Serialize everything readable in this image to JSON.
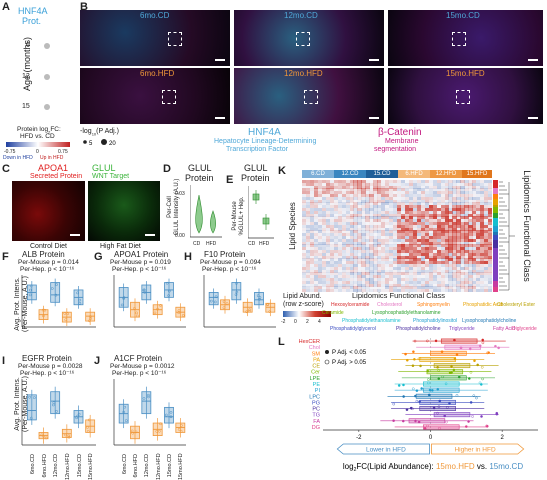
{
  "panelA": {
    "letter": "A",
    "title_l1": "HNF4A",
    "title_l2": "Prot.",
    "ylabel": "Age (months)",
    "ages": [
      "6",
      "12",
      "15"
    ],
    "legend_title_l1": "Protein log",
    "legend_title_l2": "FC:",
    "legend_title_l3": "HFD vs. CD",
    "cbar_ticks": [
      "-0.75",
      "0",
      "0.75"
    ],
    "down_label": "Down in HFD",
    "up_label": "Up in HFD",
    "size_title": "-log",
    "size_title_sub": "10",
    "size_title_end": "(P Adj.)",
    "size_values": [
      "5",
      "20"
    ]
  },
  "panelB": {
    "letter": "B",
    "cd_labels": [
      "6mo.CD",
      "12mo.CD",
      "15mo.CD"
    ],
    "hfd_labels": [
      "6mo.HFD",
      "12mo.HFD",
      "15mo.HFD"
    ],
    "hnf4a_title": "HNF4A",
    "hnf4a_desc_l1": "Hepatocyte Lineage-Determining",
    "hnf4a_desc_l2": "Transcription Factor",
    "bcat_title": "β-Catenin",
    "bcat_desc_l1": "Membrane",
    "bcat_desc_l2": "segmentation"
  },
  "panelC": {
    "letter": "C",
    "apoa1": "APOA1",
    "apoa1_sub": "Secreted Protein",
    "glul": "GLUL",
    "glul_sub": "WNT Target",
    "control": "Control Diet",
    "hfd": "High Fat Diet"
  },
  "panelD": {
    "letter": "D",
    "title_l1": "GLUL",
    "title_l2": "Protein",
    "ylabel_l1": "Per-Cell",
    "ylabel_l2": "GLUL Intensity (A.U.)",
    "yticks": [
      "0.00",
      "0.03"
    ],
    "xticks": [
      "CD",
      "HFD"
    ]
  },
  "panelE": {
    "letter": "E",
    "title_l1": "GLUL",
    "title_l2": "Protein",
    "ylabel_l1": "Per-Mouse",
    "ylabel_l2": "%GLUL+ Hep."
  },
  "panelF": {
    "letter": "F",
    "title": "ALB Protein",
    "pm": "Per-Mouse p = 0.014",
    "ph": "Per-Hep. p < 10⁻¹⁶"
  },
  "panelG": {
    "letter": "G",
    "title": "APOA1 Protein",
    "pm": "Per-Mouse p = 0.019",
    "ph": "Per-Hep. p < 10⁻¹⁶"
  },
  "panelH": {
    "letter": "H",
    "title": "F10 Protein",
    "pm": "Per-Mouse p = 0.094",
    "ph": "Per-Hep. p < 10⁻¹⁶"
  },
  "panelI": {
    "letter": "I",
    "title": "EGFR Protein",
    "pm": "Per-Mouse p = 0.0028",
    "ph": "Per-Hep. p < 10⁻¹⁶"
  },
  "panelJ": {
    "letter": "J",
    "title": "A1CF Protein",
    "pm": "Per-Mouse p = 0.0012",
    "ph": "Per-Hep. p < 10⁻¹⁶"
  },
  "protein_ylabel_l1": "Avg. Prot. Intens.",
  "protein_ylabel_l2": "(Per-Mouse, A.U.)",
  "group_labels": [
    "6mo.CD",
    "6mo.HFD",
    "12mo.CD",
    "12mo.HFD",
    "15mo.CD",
    "15mo.HFD"
  ],
  "panelK": {
    "letter": "K",
    "headers": [
      "6.CD",
      "12.CD",
      "15.CD",
      "6.HFD",
      "12.HFD",
      "15.HFD"
    ],
    "ylabel": "Lipid Species",
    "right_label": "Lipidomics Functional Class",
    "cbar_title_l1": "Lipid Abund.",
    "cbar_title_l2": "(row z-score)",
    "cbar_ticks": [
      "-2",
      "0",
      "2",
      "4"
    ],
    "class_title": "Lipidomics Functional Class",
    "classes": [
      {
        "name": "Hexosylceramide",
        "color": "#d62728"
      },
      {
        "name": "Cholesterol",
        "color": "#e377c2"
      },
      {
        "name": "Sphingomyelin",
        "color": "#ff7f0e"
      },
      {
        "name": "Phosphatidic Acid",
        "color": "#e7a200"
      },
      {
        "name": "Cholesteryl Ester",
        "color": "#b8a000"
      },
      {
        "name": "Ceramide",
        "color": "#7fb800"
      },
      {
        "name": "Lysophosphatidylethanolamine",
        "color": "#2ca02c"
      },
      {
        "name": "Phosphatidylethanolamine",
        "color": "#17becf"
      },
      {
        "name": "Phosphatidylinositol",
        "color": "#1f9fd0"
      },
      {
        "name": "Lysophosphatidylcholine",
        "color": "#1f77b4"
      },
      {
        "name": "Phosphatidylglycerol",
        "color": "#3b4cc0"
      },
      {
        "name": "Phosphatidylcholine",
        "color": "#4a2fa0"
      },
      {
        "name": "Triglyceride",
        "color": "#7f3fbf"
      },
      {
        "name": "Fatty Acid",
        "color": "#c73ba0"
      },
      {
        "name": "Diglyceride",
        "color": "#e0408a"
      }
    ]
  },
  "panelL": {
    "letter": "L",
    "classes": [
      "HexCER",
      "Chol",
      "SM",
      "PA",
      "CE",
      "Cer",
      "LPE",
      "PE",
      "PI",
      "LPC",
      "PG",
      "PC",
      "TG",
      "FA",
      "DG"
    ],
    "legend_sig": "P Adj. < 0.05",
    "legend_ns": "P Adj. > 0.05",
    "xticks": [
      "-2",
      "0",
      "2"
    ],
    "lower": "Lower in HFD",
    "higher": "Higher in HFD",
    "xlabel_pre": "log",
    "xlabel_sub": "2",
    "xlabel_mid": "FC(Lipid Abundance): ",
    "xlabel_hfd": "15mo.HFD",
    "xlabel_vs": " vs. ",
    "xlabel_cd": "15mo.CD"
  },
  "colors": {
    "cd": "#4a8fc4",
    "hfd": "#f0983a",
    "hnf4a": "#4fa8d8",
    "bcat": "#c2187f",
    "apoa1": "#e02020",
    "glul": "#3cb43c"
  }
}
